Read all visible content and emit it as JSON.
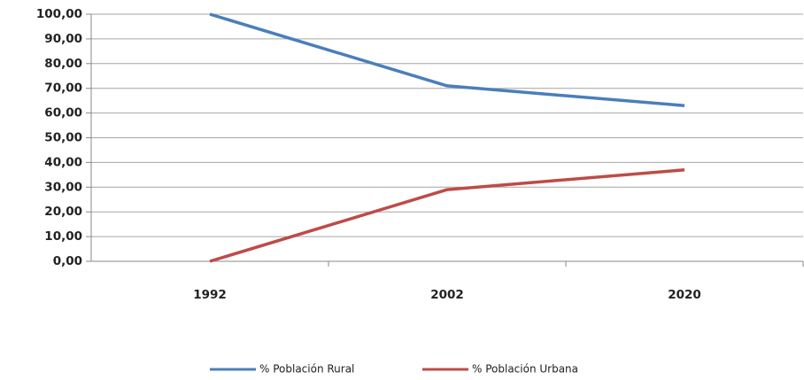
{
  "chart_data": {
    "type": "line",
    "categories": [
      "1992",
      "2002",
      "2020"
    ],
    "series": [
      {
        "name": "% Población Rural",
        "color": "#4a7ebb",
        "values": [
          100,
          71,
          63
        ]
      },
      {
        "name": "% Población Urbana",
        "color": "#be4b48",
        "values": [
          0,
          29,
          37
        ]
      }
    ],
    "ylim": [
      0,
      100
    ],
    "yticks": [
      {
        "value": 0,
        "label": "0,00"
      },
      {
        "value": 10,
        "label": "10,00"
      },
      {
        "value": 20,
        "label": "20,00"
      },
      {
        "value": 30,
        "label": "30,00"
      },
      {
        "value": 40,
        "label": "40,00"
      },
      {
        "value": 50,
        "label": "50,00"
      },
      {
        "value": 60,
        "label": "60,00"
      },
      {
        "value": 70,
        "label": "70,00"
      },
      {
        "value": 80,
        "label": "80,00"
      },
      {
        "value": 90,
        "label": "90,00"
      },
      {
        "value": 100,
        "label": "100,00"
      }
    ],
    "grid": true,
    "legend": "bottom"
  }
}
